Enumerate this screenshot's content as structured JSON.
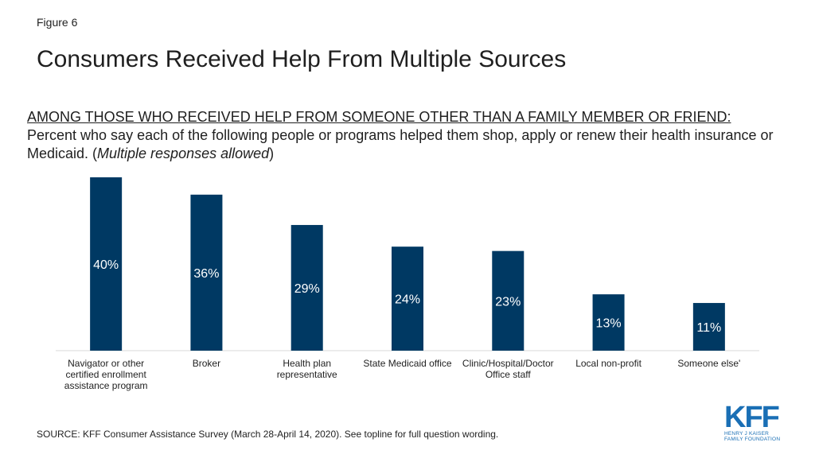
{
  "figure_label": "Figure 6",
  "title": "Consumers Received Help From Multiple Sources",
  "subtitle": {
    "underlined": "AMONG THOSE WHO RECEIVED HELP FROM SOMEONE OTHER THAN A FAMILY MEMBER OR FRIEND:",
    "body": " Percent who say each of the following people or programs helped them shop, apply or renew their health insurance or Medicaid. (",
    "italic": "Multiple responses allowed",
    "close": ")"
  },
  "source": "SOURCE: KFF Consumer Assistance Survey (March 28-April 14, 2020). See topline for full question wording.",
  "logo": {
    "mark": "KFF",
    "line1": "HENRY J KAISER",
    "line2": "FAMILY FOUNDATION"
  },
  "colors": {
    "bar": "#003963",
    "label": "#ffffff",
    "axis": "#d9d9d9",
    "logo": "#1a6fb5"
  },
  "chart_data": {
    "type": "bar",
    "categories": [
      "Navigator or other certified enrollment assistance program",
      "Broker",
      "Health plan representative",
      "State Medicaid office",
      "Clinic/Hospital/Doctor Office staff",
      "Local non-profit",
      "Someone else'"
    ],
    "category_lines": [
      [
        "Navigator or other",
        "certified enrollment",
        "assistance program"
      ],
      [
        "Broker"
      ],
      [
        "Health plan",
        "representative"
      ],
      [
        "State Medicaid office"
      ],
      [
        "Clinic/Hospital/Doctor",
        "Office staff"
      ],
      [
        "Local non-profit"
      ],
      [
        "Someone else'"
      ]
    ],
    "values": [
      40,
      36,
      29,
      24,
      23,
      13,
      11
    ],
    "data_labels": [
      "40%",
      "36%",
      "29%",
      "24%",
      "23%",
      "13%",
      "11%"
    ],
    "ylim": [
      0,
      40
    ],
    "grid": false,
    "legend": "none"
  }
}
